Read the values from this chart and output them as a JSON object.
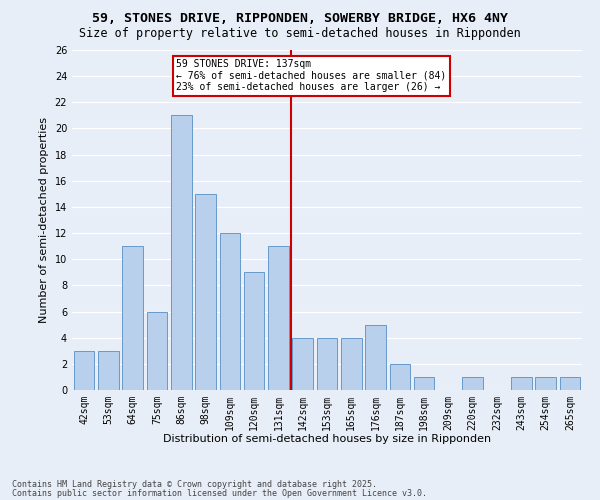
{
  "title1": "59, STONES DRIVE, RIPPONDEN, SOWERBY BRIDGE, HX6 4NY",
  "title2": "Size of property relative to semi-detached houses in Ripponden",
  "xlabel": "Distribution of semi-detached houses by size in Ripponden",
  "ylabel": "Number of semi-detached properties",
  "categories": [
    "42sqm",
    "53sqm",
    "64sqm",
    "75sqm",
    "86sqm",
    "98sqm",
    "109sqm",
    "120sqm",
    "131sqm",
    "142sqm",
    "153sqm",
    "165sqm",
    "176sqm",
    "187sqm",
    "198sqm",
    "209sqm",
    "220sqm",
    "232sqm",
    "243sqm",
    "254sqm",
    "265sqm"
  ],
  "values": [
    3,
    3,
    11,
    6,
    21,
    15,
    12,
    9,
    11,
    4,
    4,
    4,
    5,
    2,
    1,
    0,
    1,
    0,
    1,
    1,
    1
  ],
  "bar_color": "#b8d0eb",
  "bar_edge_color": "#6699cc",
  "vline_color": "#cc0000",
  "annotation_text": "59 STONES DRIVE: 137sqm\n← 76% of semi-detached houses are smaller (84)\n23% of semi-detached houses are larger (26) →",
  "annotation_box_color": "#cc0000",
  "annotation_bg": "#ffffff",
  "footnote1": "Contains HM Land Registry data © Crown copyright and database right 2025.",
  "footnote2": "Contains public sector information licensed under the Open Government Licence v3.0.",
  "ylim": [
    0,
    26
  ],
  "yticks": [
    0,
    2,
    4,
    6,
    8,
    10,
    12,
    14,
    16,
    18,
    20,
    22,
    24,
    26
  ],
  "bg_color": "#e8eef8",
  "grid_color": "#ffffff",
  "title_fontsize": 9.5,
  "subtitle_fontsize": 8.5,
  "axis_label_fontsize": 8,
  "tick_fontsize": 7,
  "footnote_fontsize": 6
}
